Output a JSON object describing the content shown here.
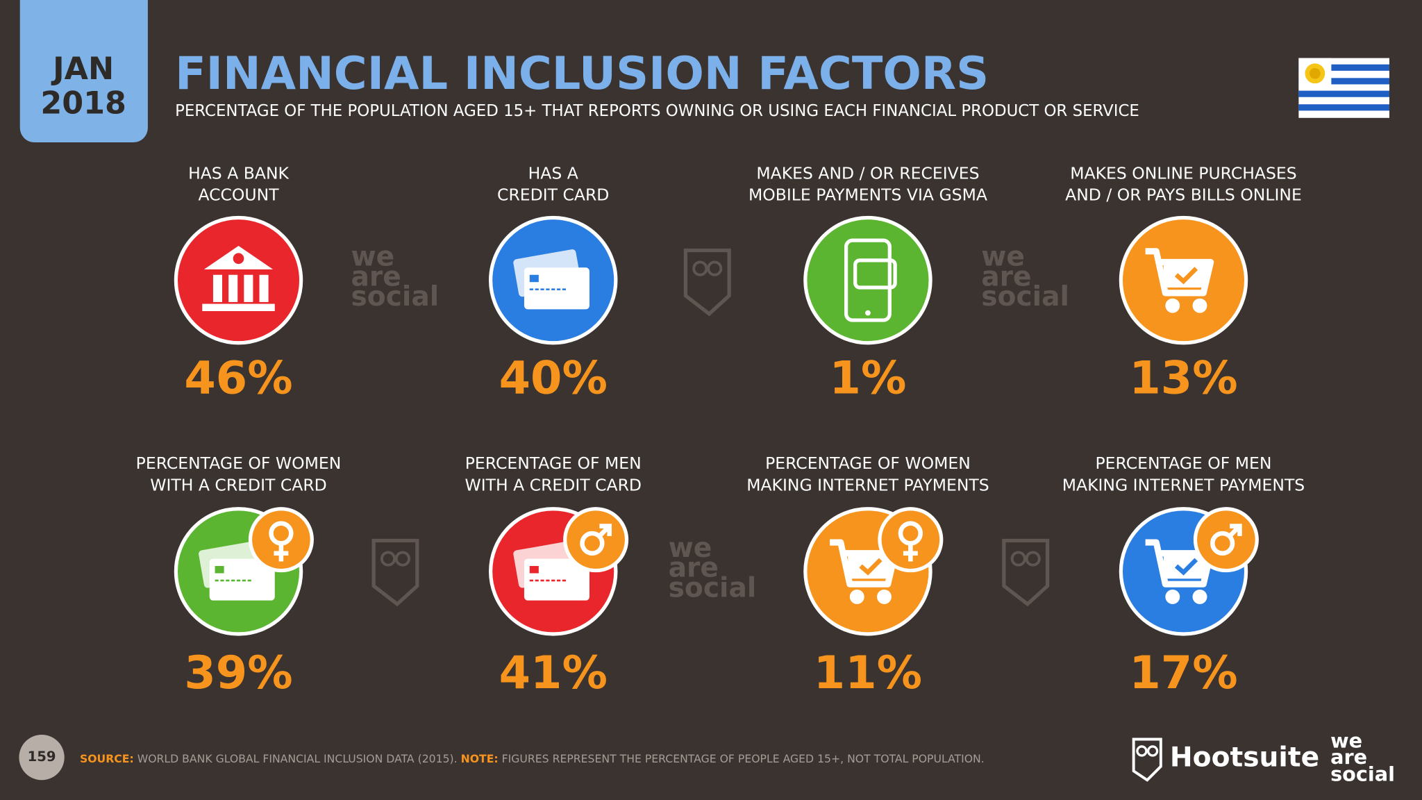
{
  "header": {
    "badge_month": "JAN",
    "badge_year": "2018",
    "title": "FINANCIAL INCLUSION FACTORS",
    "subtitle": "PERCENTAGE OF THE POPULATION AGED 15+ THAT REPORTS OWNING OR USING EACH FINANCIAL PRODUCT OR SERVICE"
  },
  "items": [
    {
      "label": [
        "HAS A BANK",
        "ACCOUNT"
      ],
      "value": "46%"
    },
    {
      "label": [
        "HAS A",
        "CREDIT CARD"
      ],
      "value": "40%"
    },
    {
      "label": [
        "MAKES AND / OR RECEIVES",
        "MOBILE PAYMENTS VIA GSMA"
      ],
      "value": "1%"
    },
    {
      "label": [
        "MAKES ONLINE PURCHASES",
        "AND / OR PAYS BILLS ONLINE"
      ],
      "value": "13%"
    },
    {
      "label": [
        "PERCENTAGE OF WOMEN",
        "WITH A CREDIT CARD"
      ],
      "value": "39%"
    },
    {
      "label": [
        "PERCENTAGE OF MEN",
        "WITH A CREDIT CARD"
      ],
      "value": "41%"
    },
    {
      "label": [
        "PERCENTAGE OF WOMEN",
        "MAKING INTERNET PAYMENTS"
      ],
      "value": "11%"
    },
    {
      "label": [
        "PERCENTAGE OF MEN",
        "MAKING INTERNET PAYMENTS"
      ],
      "value": "17%"
    }
  ],
  "watermark": [
    "we",
    "are",
    "social"
  ],
  "footer": {
    "page_number": "159",
    "source_label": "SOURCE:",
    "source_text": "WORLD BANK GLOBAL FINANCIAL INCLUSION DATA (2015).",
    "note_label": "NOTE:",
    "note_text": "FIGURES REPRESENT THE PERCENTAGE OF PEOPLE AGED 15+, NOT TOTAL POPULATION.",
    "brand": "Hootsuite",
    "logo": [
      "we",
      "are",
      "social"
    ]
  }
}
